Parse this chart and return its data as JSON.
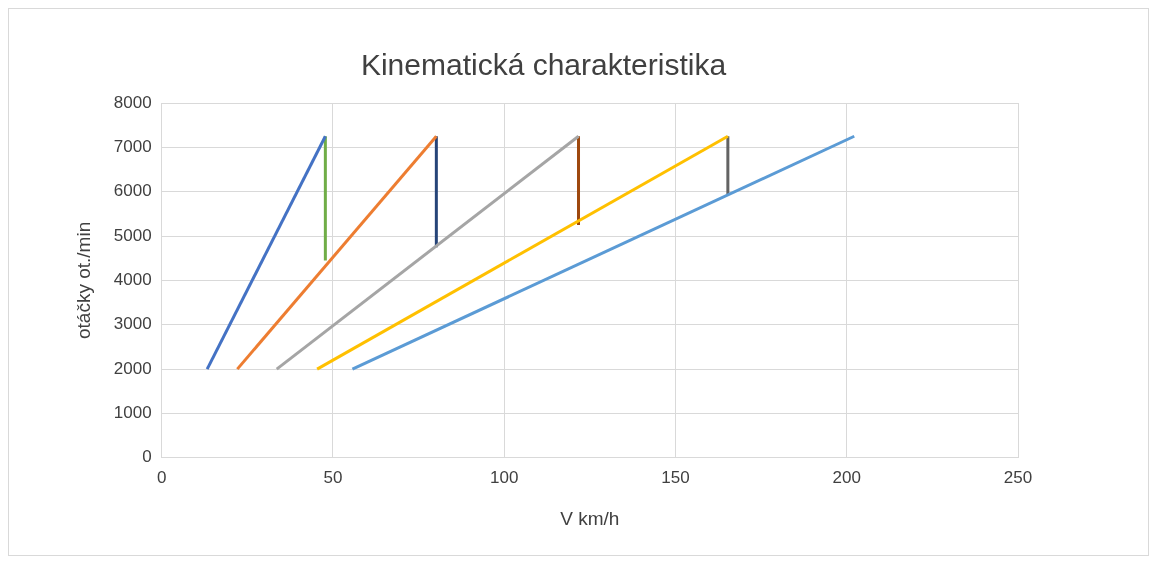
{
  "chart_data": {
    "type": "line",
    "title": "Kinematická charakteristika",
    "xlabel": "V km/h",
    "ylabel": "otáčky ot./min",
    "xlim": [
      0,
      250
    ],
    "xticks": [
      0,
      50,
      100,
      150,
      200,
      250
    ],
    "ylim": [
      0,
      8000
    ],
    "yticks": [
      0,
      1000,
      2000,
      3000,
      4000,
      5000,
      6000,
      7000,
      8000
    ],
    "grid": true,
    "legend": false,
    "marker": "none",
    "series": [
      {
        "color": "#4472c4",
        "x": [
          13.3,
          47.8
        ],
        "values": [
          2000,
          7250
        ]
      },
      {
        "color": "#ed7d31",
        "x": [
          22.1,
          80.2
        ],
        "values": [
          2000,
          7250
        ]
      },
      {
        "color": "#a5a5a5",
        "x": [
          33.6,
          121.7
        ],
        "values": [
          2000,
          7250
        ]
      },
      {
        "color": "#ffc000",
        "x": [
          45.4,
          165.3
        ],
        "values": [
          2000,
          7250
        ]
      },
      {
        "color": "#5b9bd5",
        "x": [
          55.7,
          202.2
        ],
        "values": [
          2000,
          7250
        ]
      },
      {
        "color": "#70ad47",
        "x": [
          47.8,
          47.8
        ],
        "values": [
          4450,
          7250
        ]
      },
      {
        "color": "#264478",
        "x": [
          80.2,
          80.2
        ],
        "values": [
          4750,
          7250
        ]
      },
      {
        "color": "#9e480e",
        "x": [
          121.7,
          121.7
        ],
        "values": [
          5250,
          7250
        ]
      },
      {
        "color": "#636363",
        "x": [
          165.3,
          165.3
        ],
        "values": [
          5950,
          7250
        ]
      }
    ]
  }
}
